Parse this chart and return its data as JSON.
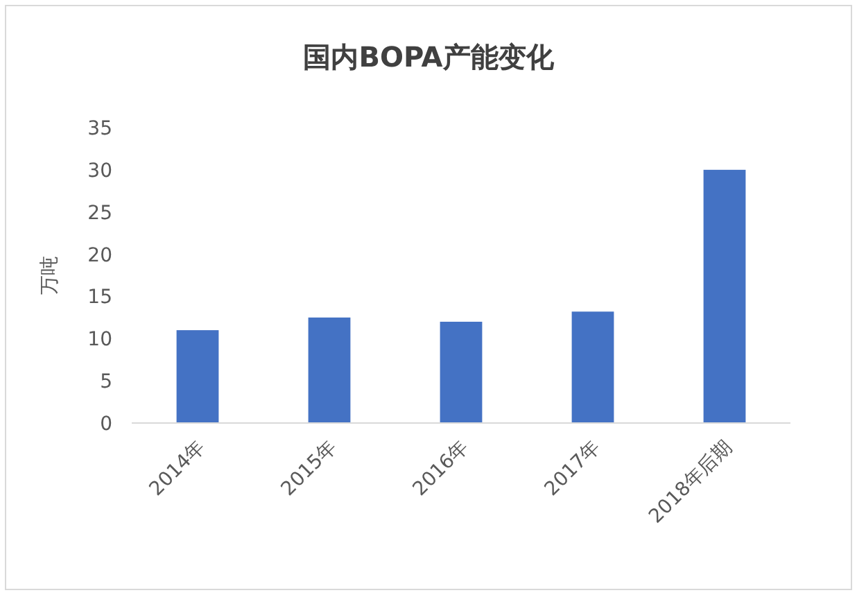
{
  "chart_data": {
    "type": "bar",
    "title": "国内BOPA产能变化",
    "ylabel": "万吨",
    "categories": [
      "2014年",
      "2015年",
      "2016年",
      "2017年",
      "2018年后期"
    ],
    "values": [
      11,
      12.5,
      12,
      13.2,
      30
    ],
    "color": "#4472c4",
    "ylim": [
      0,
      35
    ],
    "yticks": [
      0,
      5,
      10,
      15,
      20,
      25,
      30,
      35
    ]
  }
}
